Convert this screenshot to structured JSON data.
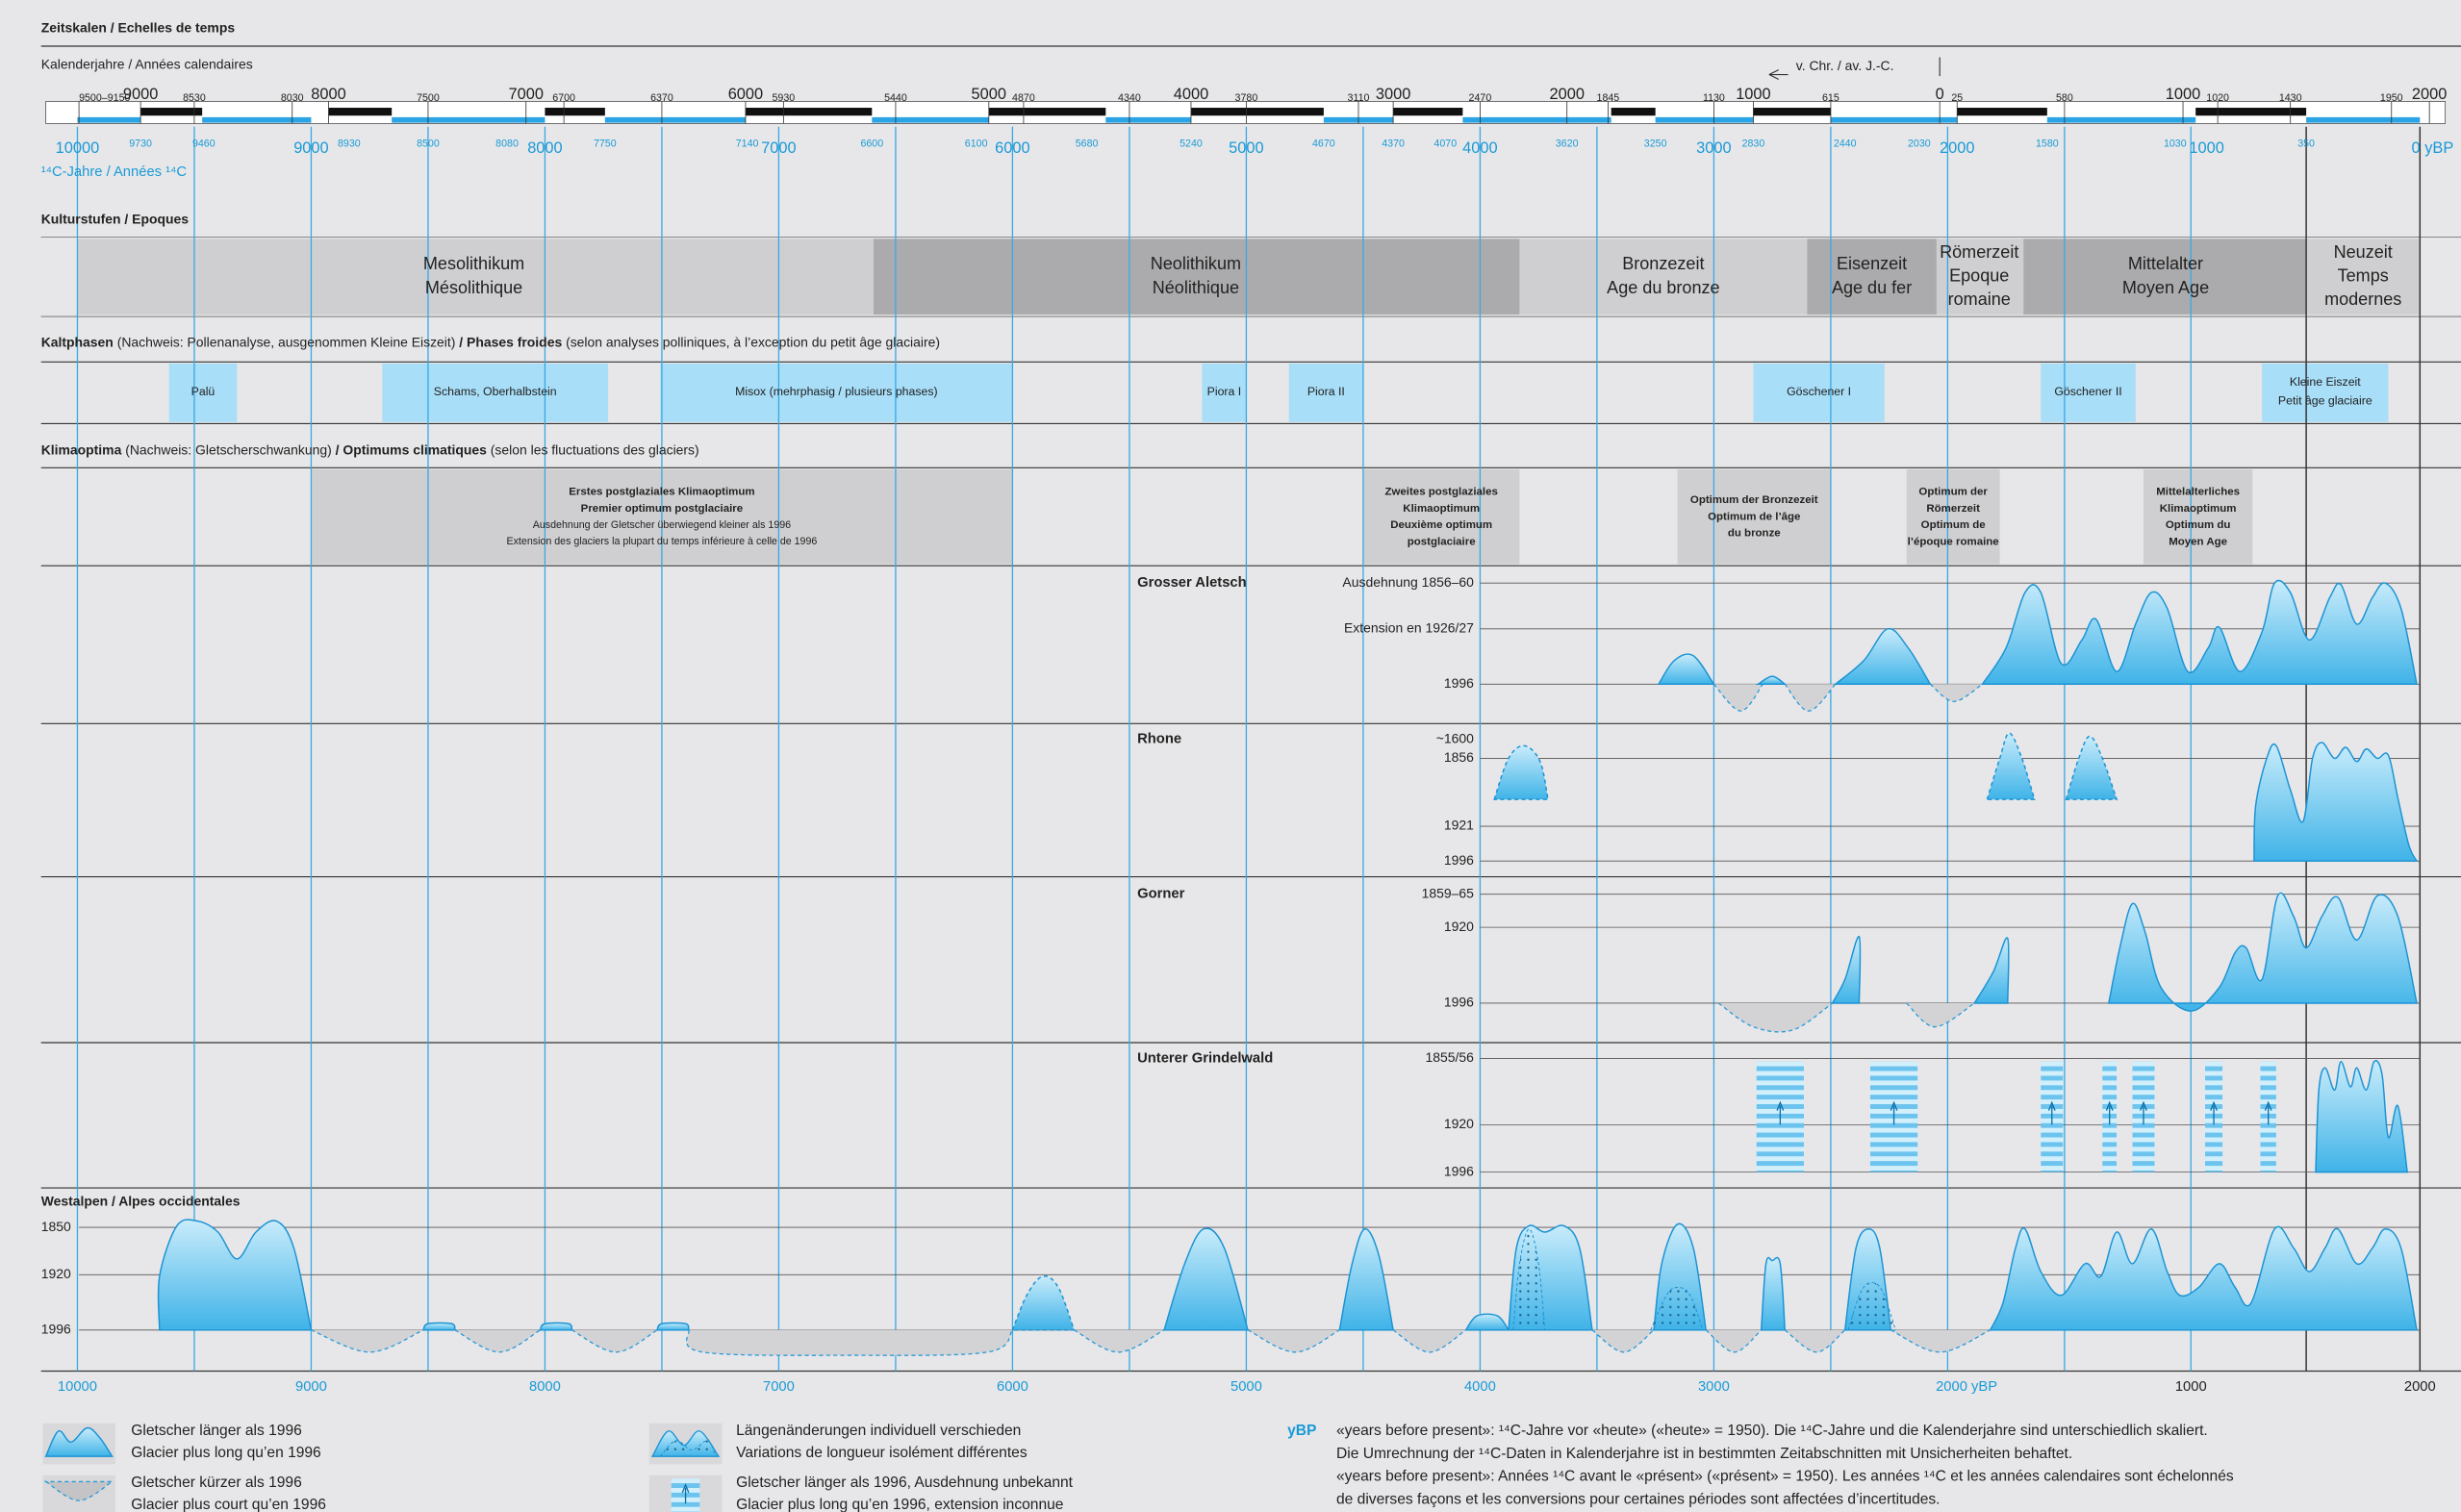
{
  "header": {
    "title": "Zeitskalen / Echelles de temps",
    "calendar_label": "Kalenderjahre / Années calendaires",
    "bc_label": "v. Chr. / av. J.-C.",
    "c14_label": "¹⁴C-Jahre / Années ¹⁴C"
  },
  "calendar_ticks": [
    "9500–9150",
    "9000",
    "8530",
    "8030",
    "8000",
    "7500",
    "7000",
    "6700",
    "6370",
    "6000",
    "5930",
    "5440",
    "5000",
    "4870",
    "4340",
    "4000",
    "3780",
    "3110",
    "3000",
    "2470",
    "2000",
    "1845",
    "1130",
    "1000",
    "615",
    "0",
    "25",
    "580",
    "1000",
    "1020",
    "1430",
    "1950",
    "2000"
  ],
  "c14_ticks": [
    "10000",
    "9730",
    "9460",
    "9000",
    "8930",
    "8500",
    "8080",
    "8000",
    "7750",
    "7140",
    "7000",
    "6600",
    "6100",
    "6000",
    "5680",
    "5240",
    "5000",
    "4670",
    "4370",
    "4070",
    "4000",
    "3620",
    "3250",
    "3000",
    "2830",
    "2440",
    "2030",
    "2000",
    "1580",
    "1030",
    "1000",
    "350",
    "0 yBP"
  ],
  "epochs": {
    "title": "Kulturstufen / Epoques",
    "items": [
      {
        "lines": [
          "Mesolithikum",
          "Mésolithique"
        ]
      },
      {
        "lines": [
          "Neolithikum",
          "Néolithique"
        ]
      },
      {
        "lines": [
          "Bronzezeit",
          "Age du bronze"
        ]
      },
      {
        "lines": [
          "Eisenzeit",
          "Age du fer"
        ]
      },
      {
        "lines": [
          "Römerzeit",
          "Epoque",
          "romaine"
        ]
      },
      {
        "lines": [
          "Mittelalter",
          "Moyen Age"
        ]
      },
      {
        "lines": [
          "Neuzeit",
          "Temps",
          "modernes"
        ]
      }
    ]
  },
  "cold_phases": {
    "title_parts": [
      "Kaltphasen",
      " (Nachweis: Pollenanalyse, ausgenommen Kleine Eiszeit) ",
      "/ Phases froides",
      " (selon analyses polliniques, à l’exception du petit âge glaciaire)"
    ],
    "items": [
      {
        "lines": [
          "Palü"
        ]
      },
      {
        "lines": [
          "Schams, Oberhalbstein"
        ]
      },
      {
        "lines": [
          "Misox (mehrphasig / plusieurs phases)"
        ]
      },
      {
        "lines": [
          "Piora I"
        ]
      },
      {
        "lines": [
          "Piora II"
        ]
      },
      {
        "lines": [
          "Göschener I"
        ]
      },
      {
        "lines": [
          "Göschener II"
        ]
      },
      {
        "lines": [
          "Kleine Eiszeit",
          "Petit âge glaciaire"
        ]
      }
    ]
  },
  "climate_optima": {
    "title_parts": [
      "Klimaoptima",
      " (Nachweis: Gletscherschwankung) ",
      "/ Optimums climatiques",
      " (selon les fluctuations des glaciers)"
    ],
    "items": [
      {
        "lines": [
          "Erstes postglaziales Klimaoptimum",
          "Premier optimum postglaciaire",
          "Ausdehnung der Gletscher überwiegend kleiner als 1996",
          "Extension des glaciers la plupart du temps inférieure à celle de 1996"
        ]
      },
      {
        "lines": [
          "Zweites postglaziales",
          "Klimaoptimum",
          "Deuxième optimum",
          "postglaciaire"
        ]
      },
      {
        "lines": [
          "Optimum der Bronzezeit",
          "Optimum de l’âge",
          "du bronze"
        ]
      },
      {
        "lines": [
          "Optimum der",
          "Römerzeit",
          "Optimum de",
          "l’époque romaine"
        ]
      },
      {
        "lines": [
          "Mittelalterliches",
          "Klimaoptimum",
          "Optimum du",
          "Moyen Age"
        ]
      }
    ]
  },
  "glaciers": [
    {
      "name": "Grosser Aletsch",
      "levels": [
        "Ausdehnung 1856–60",
        "Extension en 1926/27",
        "1996"
      ]
    },
    {
      "name": "Rhone",
      "levels": [
        "~1600",
        "1856",
        "1921",
        "1996"
      ]
    },
    {
      "name": "Gorner",
      "levels": [
        "1859–65",
        "1920",
        "1996"
      ]
    },
    {
      "name": "Unterer Grindelwald",
      "levels": [
        "1855/56",
        "1920",
        "1996"
      ]
    }
  ],
  "western_alps": {
    "title": "Westalpen / Alpes occidentales",
    "levels": [
      "1850",
      "1920",
      "1996"
    ]
  },
  "bottom_axis": [
    "10000",
    "9000",
    "8000",
    "7000",
    "6000",
    "5000",
    "4000",
    "3000",
    "2000 yBP",
    "1000",
    "2000"
  ],
  "legend": [
    {
      "lines": [
        "Gletscher länger als 1996",
        "Glacier plus long qu’en 1996"
      ]
    },
    {
      "lines": [
        "Gletscher kürzer als 1996",
        "Glacier plus court qu’en 1996"
      ]
    },
    {
      "lines": [
        "Längenänderungen individuell verschieden",
        "Variations de longueur isolément différentes"
      ]
    },
    {
      "lines": [
        "Gletscher länger als 1996, Ausdehnung unbekannt",
        "Glacier plus long qu’en 1996, extension inconnue"
      ]
    }
  ],
  "note": {
    "key": "yBP",
    "lines": [
      "«years before present»: ¹⁴C-Jahre vor «heute» («heute» = 1950). Die ¹⁴C-Jahre und die Kalenderjahre sind unterschiedlich skaliert.",
      "Die Umrechnung der ¹⁴C-Daten in Kalenderjahre ist in bestimmten Zeitabschnitten mit Unsicherheiten behaftet.",
      "«years before present»: Années ¹⁴C avant le «présent» («présent» = 1950). Les années ¹⁴C et les années calendaires sont échelonnés",
      "de diverses façons et les conversions pour certaines périodes sont affectées d’incertitudes."
    ]
  }
}
